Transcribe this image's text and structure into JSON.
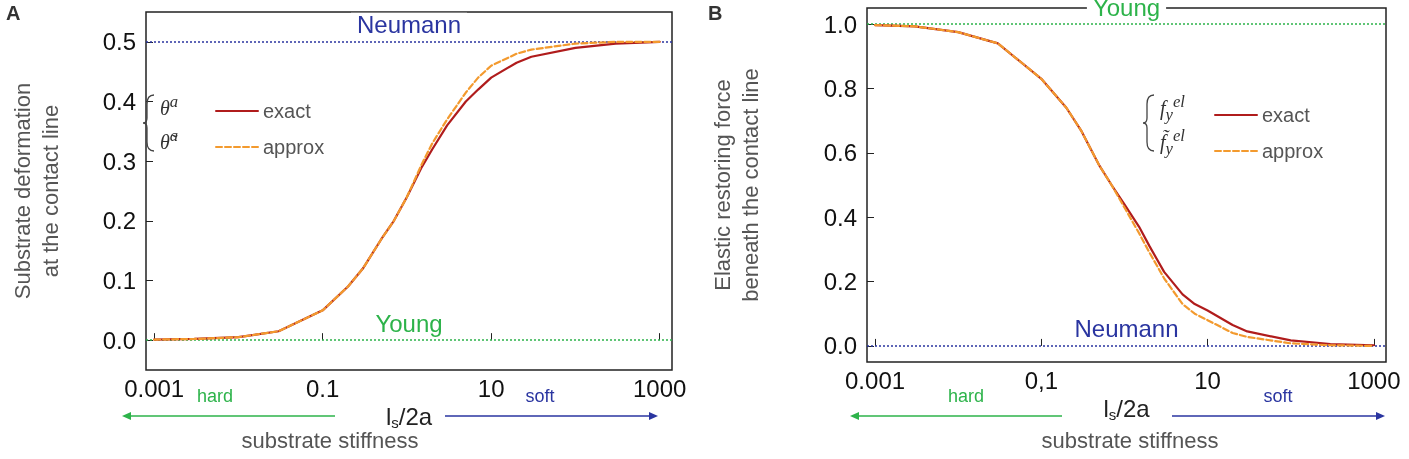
{
  "chart_data": [
    {
      "type": "line",
      "xlabel": "l$_{s}$/2a",
      "ylabel": "Substrate deformation\nat the contact line",
      "log": "x",
      "xlim": [
        0.0008,
        1400
      ],
      "xticks": [
        {
          "value": 0.001,
          "label": "0.001"
        },
        {
          "value": 0.1,
          "label": "0.1"
        },
        {
          "value": 10,
          "label": "10"
        },
        {
          "value": 1000,
          "label": "1000"
        }
      ],
      "ylim": [
        -0.05,
        0.55
      ],
      "yticks": [
        {
          "value": 0,
          "label": "0.0"
        },
        {
          "value": 0.1,
          "label": "0.1"
        },
        {
          "value": 0.2,
          "label": "0.2"
        },
        {
          "value": 0.3,
          "label": "0.3"
        },
        {
          "value": 0.4,
          "label": "0.4"
        },
        {
          "value": 0.5,
          "label": "0.5"
        }
      ],
      "x": [
        0.001,
        0.003,
        0.01,
        0.03,
        0.1,
        0.2,
        0.3,
        0.5,
        0.7,
        1,
        1.5,
        2,
        3,
        5,
        7,
        10,
        20,
        30,
        100,
        300,
        1000
      ],
      "series": [
        {
          "name": "exact",
          "color": "#b01c1c",
          "line_style": "solid",
          "values": [
            0.001,
            0.002,
            0.005,
            0.015,
            0.05,
            0.09,
            0.12,
            0.17,
            0.2,
            0.24,
            0.29,
            0.32,
            0.36,
            0.4,
            0.42,
            0.44,
            0.465,
            0.475,
            0.49,
            0.497,
            0.5
          ]
        },
        {
          "name": "approx",
          "color": "#f39a2e",
          "line_style": "dashed",
          "values": [
            0.001,
            0.002,
            0.005,
            0.015,
            0.05,
            0.09,
            0.12,
            0.17,
            0.2,
            0.24,
            0.295,
            0.33,
            0.37,
            0.415,
            0.44,
            0.46,
            0.48,
            0.487,
            0.497,
            0.5,
            0.5
          ]
        }
      ],
      "ref_lines": [
        {
          "axis": "y",
          "value": 0.5,
          "label": "Neumann",
          "color": "#2a35a0",
          "line_style": "dotted"
        },
        {
          "axis": "y",
          "value": 0,
          "label": "Young",
          "color": "#2db34a",
          "line_style": "dotted"
        }
      ],
      "legend": "top left",
      "grid": false,
      "marker": "none",
      "annotations": [
        "A",
        "hard",
        "soft",
        "substrate stiffness",
        "θ$^{a}$",
        "θ̃$^{a}$"
      ]
    },
    {
      "type": "line",
      "xlabel": "l$_{s}$/2a",
      "ylabel": "Elastic restoring force\nbeneath the contact line",
      "log": "x",
      "xlim": [
        0.0008,
        1400
      ],
      "xticks": [
        {
          "value": 0.001,
          "label": "0.001"
        },
        {
          "value": 0.1,
          "label": "0,1"
        },
        {
          "value": 10,
          "label": "10"
        },
        {
          "value": 1000,
          "label": "1000"
        }
      ],
      "ylim": [
        -0.05,
        1.05
      ],
      "yticks": [
        {
          "value": 0,
          "label": "0.0"
        },
        {
          "value": 0.2,
          "label": "0.2"
        },
        {
          "value": 0.4,
          "label": "0.4"
        },
        {
          "value": 0.6,
          "label": "0.6"
        },
        {
          "value": 0.8,
          "label": "0.8"
        },
        {
          "value": 1,
          "label": "1.0"
        }
      ],
      "x": [
        0.001,
        0.003,
        0.01,
        0.03,
        0.1,
        0.2,
        0.3,
        0.5,
        0.7,
        1,
        1.5,
        2,
        3,
        5,
        7,
        10,
        20,
        30,
        100,
        300,
        1000
      ],
      "series": [
        {
          "name": "exact",
          "color": "#b01c1c",
          "line_style": "solid",
          "values": [
            0.997,
            0.993,
            0.975,
            0.94,
            0.83,
            0.74,
            0.67,
            0.56,
            0.5,
            0.44,
            0.37,
            0.31,
            0.23,
            0.16,
            0.13,
            0.11,
            0.065,
            0.045,
            0.017,
            0.006,
            0.002
          ]
        },
        {
          "name": "approx",
          "color": "#f39a2e",
          "line_style": "dashed",
          "values": [
            0.997,
            0.993,
            0.975,
            0.94,
            0.83,
            0.74,
            0.67,
            0.56,
            0.5,
            0.43,
            0.35,
            0.29,
            0.21,
            0.13,
            0.1,
            0.08,
            0.04,
            0.028,
            0.008,
            0.002,
            0
          ]
        }
      ],
      "ref_lines": [
        {
          "axis": "y",
          "value": 1,
          "label": "Young",
          "color": "#2db34a",
          "line_style": "dotted"
        },
        {
          "axis": "y",
          "value": 0,
          "label": "Neumann",
          "color": "#2a35a0",
          "line_style": "dotted"
        }
      ],
      "legend": "right",
      "grid": false,
      "marker": "none",
      "annotations": [
        "B",
        "hard",
        "soft",
        "substrate stiffness",
        "f$_{y}$$^{el}$",
        "f̃$_{y}$$^{el}$"
      ]
    }
  ]
}
